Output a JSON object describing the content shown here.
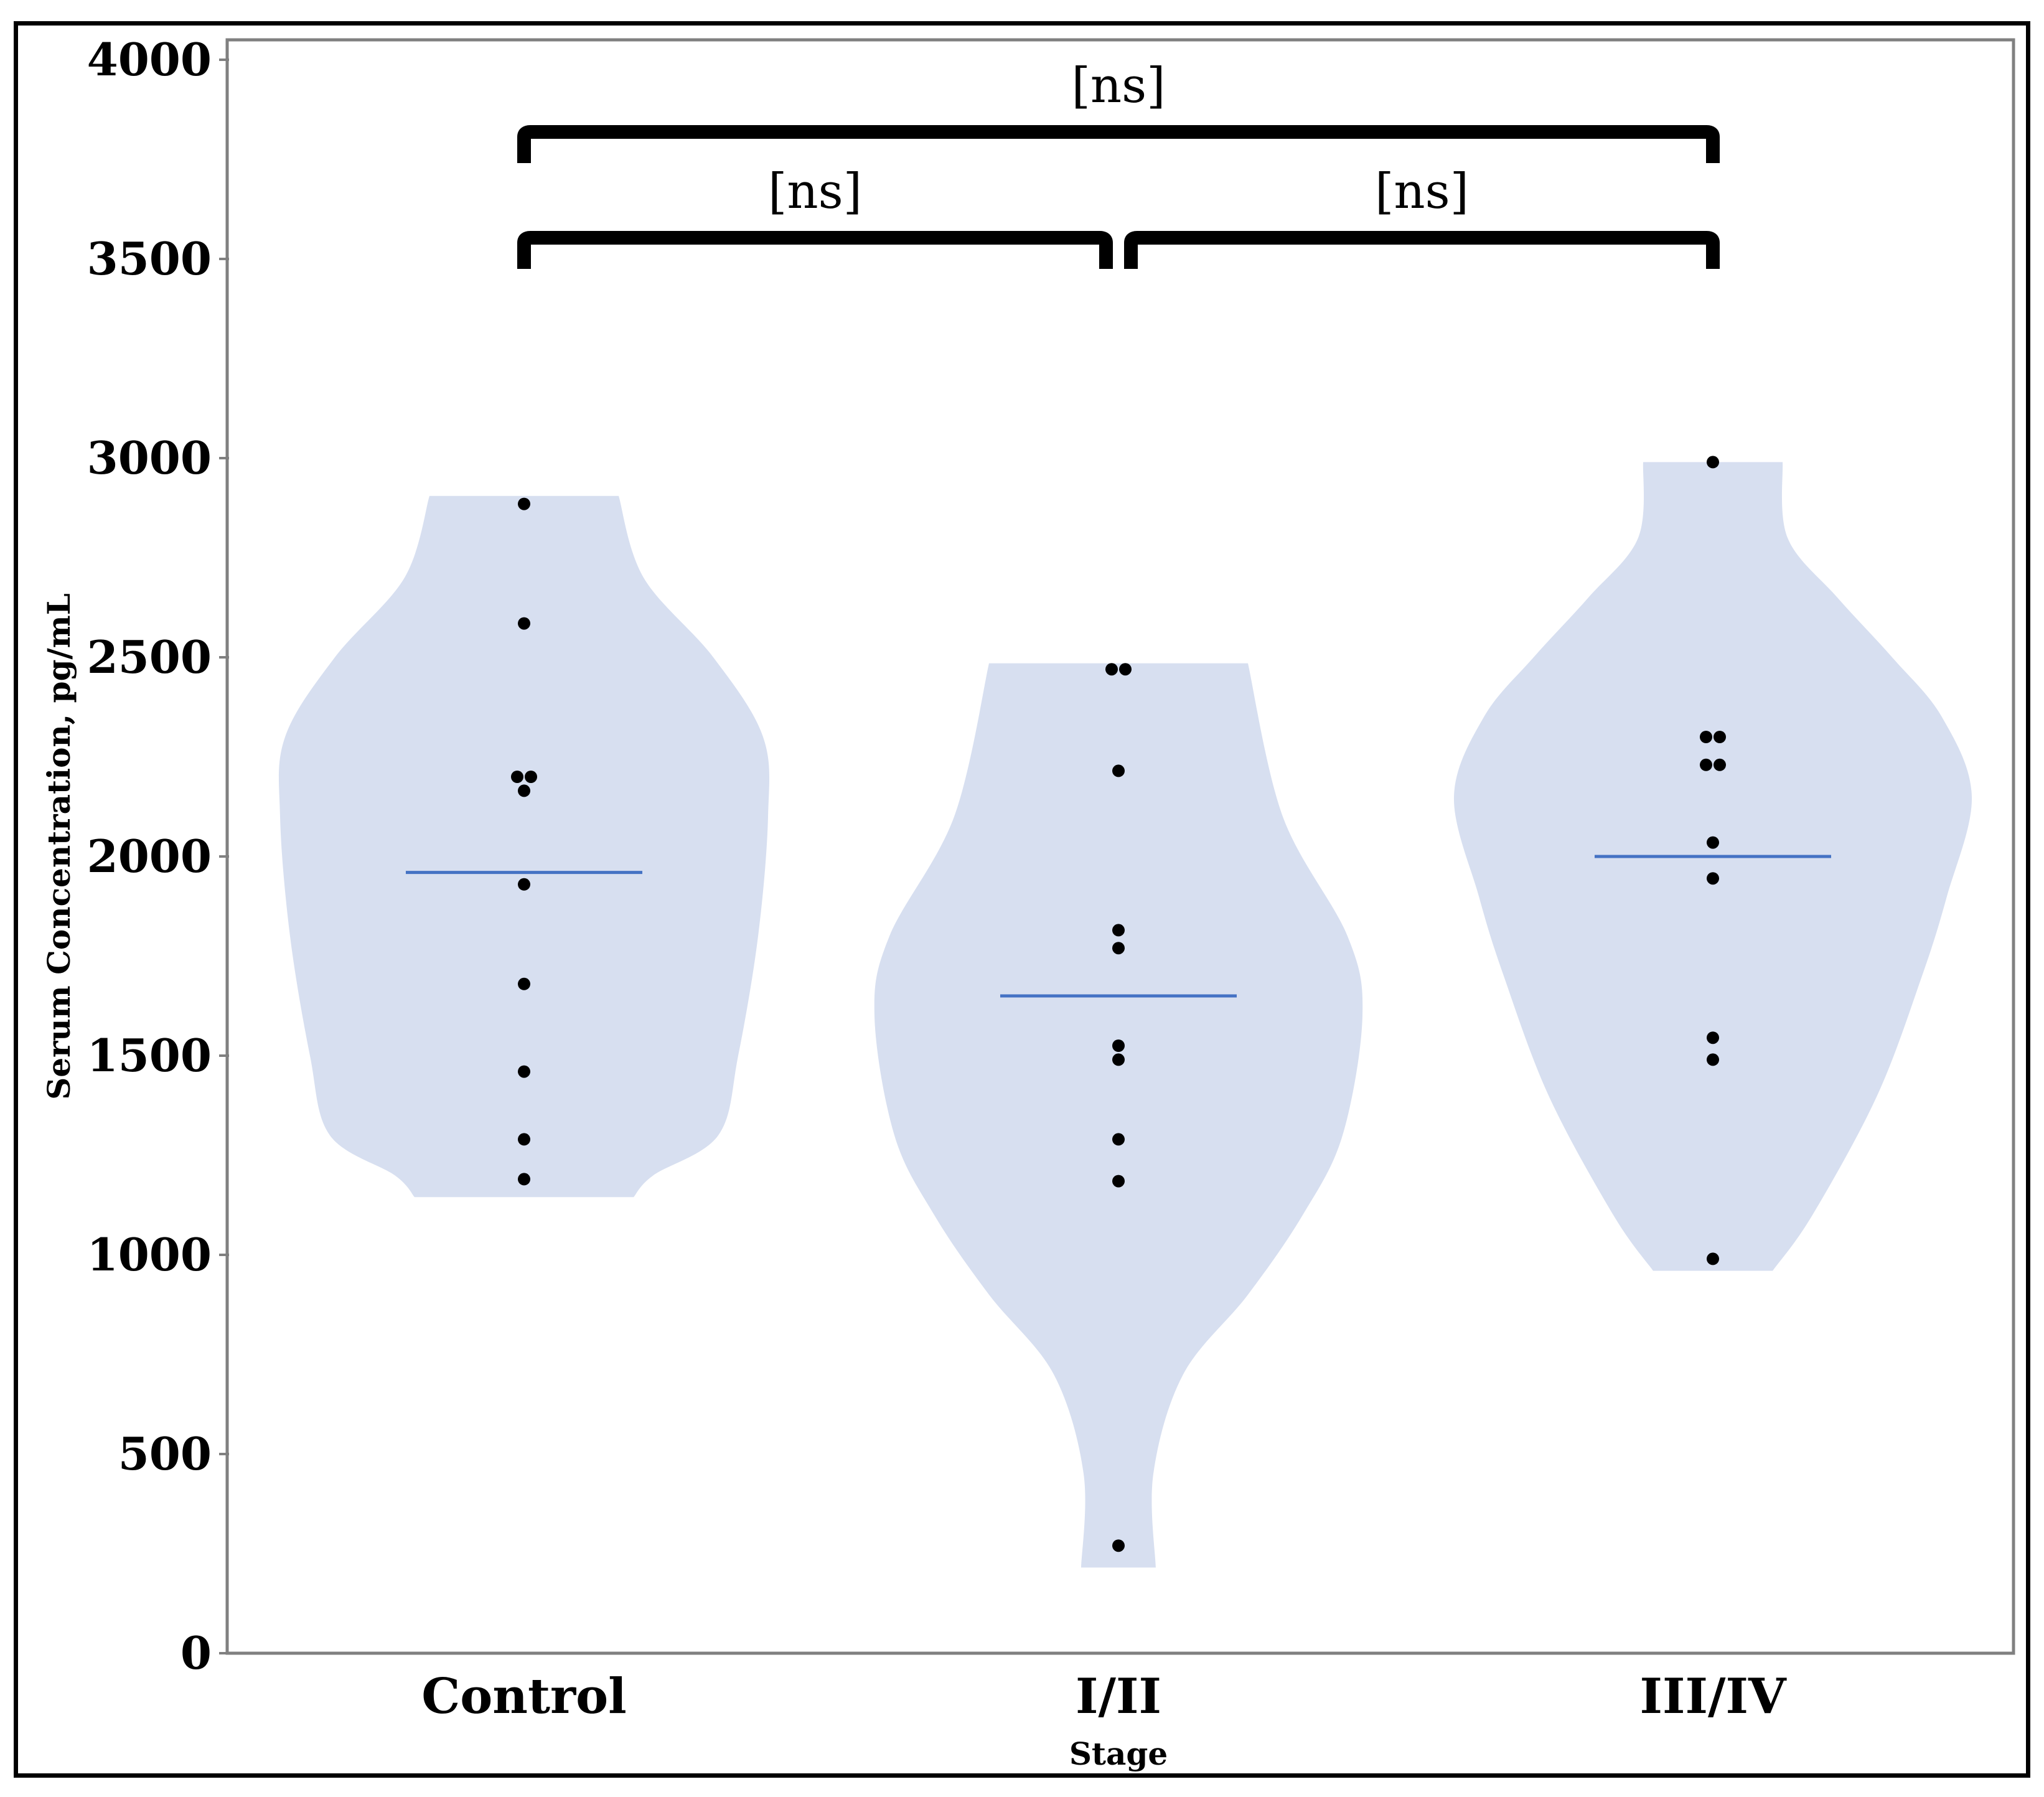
{
  "chart_data": {
    "type": "violin",
    "title": "",
    "xlabel": "Stage",
    "ylabel": "Serum Concentration, pg/mL",
    "ylim": [
      0,
      4000
    ],
    "yticks": [
      "0",
      "500",
      "1000",
      "1500",
      "2000",
      "2500",
      "3000",
      "3500",
      "4000"
    ],
    "categories": [
      "Control",
      "I/II",
      "III/IV"
    ],
    "colors": {
      "violin": "#d7dff0",
      "median": "#4472c4",
      "point": "#000000",
      "frame": "#808080"
    },
    "groups": [
      {
        "name": "Control",
        "median": 1960,
        "range": [
          1145,
          2905
        ],
        "points": [
          2885,
          2585,
          2200,
          2200,
          2165,
          1930,
          1680,
          1460,
          1290,
          1190
        ],
        "density": [
          [
            1145,
            0.22
          ],
          [
            1200,
            0.26
          ],
          [
            1300,
            0.39
          ],
          [
            1500,
            0.43
          ],
          [
            1800,
            0.47
          ],
          [
            2100,
            0.49
          ],
          [
            2300,
            0.48
          ],
          [
            2500,
            0.38
          ],
          [
            2700,
            0.24
          ],
          [
            2905,
            0.19
          ]
        ]
      },
      {
        "name": "I/II",
        "median": 1650,
        "range": [
          215,
          2485
        ],
        "points": [
          2470,
          2470,
          2215,
          1815,
          1770,
          1525,
          1490,
          1290,
          1185,
          270
        ],
        "density": [
          [
            215,
            0.075
          ],
          [
            450,
            0.07
          ],
          [
            700,
            0.13
          ],
          [
            900,
            0.26
          ],
          [
            1100,
            0.37
          ],
          [
            1300,
            0.45
          ],
          [
            1600,
            0.49
          ],
          [
            1800,
            0.46
          ],
          [
            2100,
            0.33
          ],
          [
            2485,
            0.26
          ]
        ]
      },
      {
        "name": "III/IV",
        "median": 2000,
        "range": [
          960,
          2990
        ],
        "points": [
          2990,
          2300,
          2300,
          2230,
          2230,
          2035,
          1945,
          1545,
          1490,
          990
        ],
        "density": [
          [
            960,
            0.12
          ],
          [
            1100,
            0.2
          ],
          [
            1400,
            0.33
          ],
          [
            1700,
            0.42
          ],
          [
            1900,
            0.47
          ],
          [
            2150,
            0.52
          ],
          [
            2350,
            0.46
          ],
          [
            2500,
            0.36
          ],
          [
            2650,
            0.25
          ],
          [
            2800,
            0.15
          ],
          [
            2990,
            0.14
          ]
        ]
      }
    ],
    "annotations": [
      {
        "from": 0,
        "to": 2,
        "text": "[ns]",
        "level": 2
      },
      {
        "from": 0,
        "to": 1,
        "text": "[ns]",
        "level": 1
      },
      {
        "from": 1,
        "to": 2,
        "text": "[ns]",
        "level": 1
      }
    ]
  }
}
